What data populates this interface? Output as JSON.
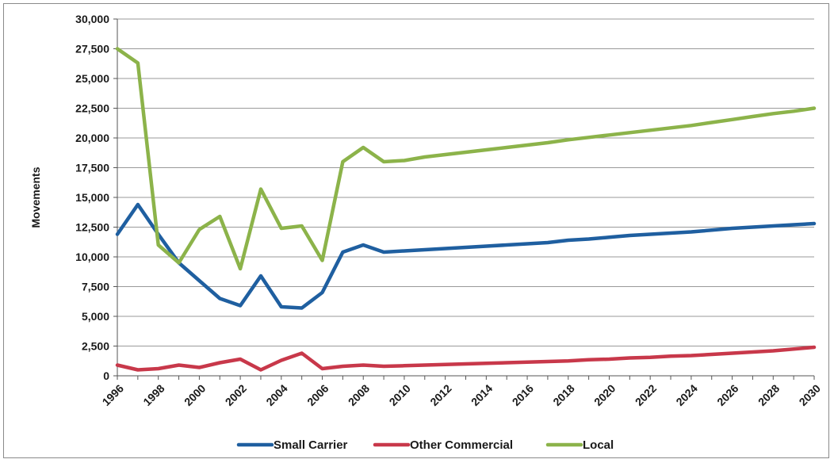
{
  "chart_data": {
    "type": "line",
    "title": "",
    "xlabel": "",
    "ylabel": "Movements",
    "ylim": [
      0,
      30000
    ],
    "y_ticks": [
      "0",
      "2,500",
      "5,000",
      "7,500",
      "10,000",
      "12,500",
      "15,000",
      "17,500",
      "20,000",
      "22,500",
      "25,000",
      "27,500",
      "30,000"
    ],
    "x_tick_labels": [
      "1996",
      "1998",
      "2000",
      "2002",
      "2004",
      "2006",
      "2008",
      "2010",
      "2012",
      "2014",
      "2016",
      "2018",
      "2020",
      "2022",
      "2024",
      "2026",
      "2028",
      "2030"
    ],
    "grid": "horizontal",
    "legend_position": "bottom",
    "x": [
      1996,
      1997,
      1998,
      1999,
      2000,
      2001,
      2002,
      2003,
      2004,
      2005,
      2006,
      2007,
      2008,
      2009,
      2010,
      2011,
      2012,
      2013,
      2014,
      2015,
      2016,
      2017,
      2018,
      2019,
      2020,
      2021,
      2022,
      2023,
      2024,
      2025,
      2026,
      2027,
      2028,
      2029,
      2030
    ],
    "series": [
      {
        "name": "Small Carrier",
        "color": "#1f5fa0",
        "values": [
          11900,
          14400,
          11900,
          9500,
          8000,
          6500,
          5900,
          8400,
          5800,
          5700,
          7000,
          10400,
          11000,
          10400,
          10500,
          10600,
          10700,
          10800,
          10900,
          11000,
          11100,
          11200,
          11400,
          11500,
          11650,
          11800,
          11900,
          12000,
          12100,
          12250,
          12400,
          12500,
          12600,
          12700,
          12800
        ]
      },
      {
        "name": "Other Commercial",
        "color": "#c8384a",
        "values": [
          900,
          500,
          600,
          900,
          700,
          1100,
          1400,
          500,
          1300,
          1900,
          600,
          800,
          900,
          800,
          850,
          900,
          950,
          1000,
          1050,
          1100,
          1150,
          1200,
          1250,
          1350,
          1400,
          1500,
          1550,
          1650,
          1700,
          1800,
          1900,
          2000,
          2100,
          2250,
          2400
        ]
      },
      {
        "name": "Local",
        "color": "#8cb34a",
        "values": [
          27500,
          26300,
          11000,
          9500,
          12300,
          13400,
          9000,
          15700,
          12400,
          12600,
          9700,
          18000,
          19200,
          18000,
          18100,
          18400,
          18600,
          18800,
          19000,
          19200,
          19400,
          19600,
          19850,
          20050,
          20250,
          20450,
          20650,
          20850,
          21050,
          21300,
          21550,
          21800,
          22050,
          22250,
          22500
        ]
      }
    ]
  }
}
